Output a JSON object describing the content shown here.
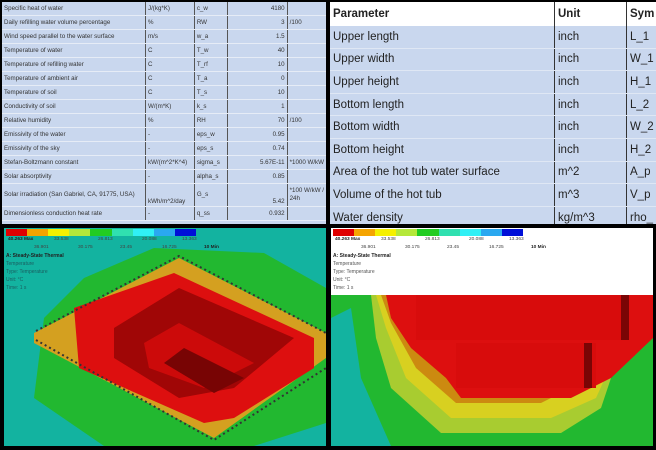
{
  "left_table": {
    "rows": [
      {
        "name": "Specific heat of water",
        "unit": "J/(kg*K)",
        "symbol": "c_w",
        "value": "4180",
        "note": ""
      },
      {
        "name": "Daily refilling water volume percentage",
        "unit": "%",
        "symbol": "RW",
        "value": "3",
        "note": "/100"
      },
      {
        "name": "Wind speed parallel to the water surface",
        "unit": "m/s",
        "symbol": "w_a",
        "value": "1.5",
        "note": ""
      },
      {
        "name": "Temperature of water",
        "unit": "C",
        "symbol": "T_w",
        "value": "40",
        "note": ""
      },
      {
        "name": "Temperature of refilling water",
        "unit": "C",
        "symbol": "T_rf",
        "value": "10",
        "note": ""
      },
      {
        "name": "Temperature of ambient air",
        "unit": "C",
        "symbol": "T_a",
        "value": "0",
        "note": ""
      },
      {
        "name": "Temperature of soil",
        "unit": "C",
        "symbol": "T_s",
        "value": "10",
        "note": ""
      },
      {
        "name": "Conductivity of soil",
        "unit": "W/(m*K)",
        "symbol": "k_s",
        "value": "1",
        "note": ""
      },
      {
        "name": "Relative humidity",
        "unit": "%",
        "symbol": "RH",
        "value": "70",
        "note": "/100"
      },
      {
        "name": "Emissivity of the water",
        "unit": "-",
        "symbol": "eps_w",
        "value": "0.95",
        "note": ""
      },
      {
        "name": "Emissivity of the sky",
        "unit": "-",
        "symbol": "eps_s",
        "value": "0.74",
        "note": ""
      },
      {
        "name": "Stefan-Boltzmann constant",
        "unit": "kW/(m^2*K^4)",
        "symbol": "sigma_s",
        "value": "5.67E-11",
        "note": "*1000 W/kW"
      },
      {
        "name": "Solar absorptivity",
        "unit": "-",
        "symbol": "alpha_s",
        "value": "0.85",
        "note": ""
      },
      {
        "name": "Solar irradiation (San Gabriel, CA, 91775, USA)",
        "unit": "kWh/m^2/day",
        "symbol": "G_s",
        "value": "5.42",
        "note": "*100 W/kW / 24h"
      },
      {
        "name": "Dimensionless conduction heat rate",
        "unit": "-",
        "symbol": "q_ss",
        "value": "0.932",
        "note": ""
      }
    ]
  },
  "right_table": {
    "headers": {
      "parameter": "Parameter",
      "unit": "Unit",
      "symbol": "Sym"
    },
    "rows": [
      {
        "name": "Upper length",
        "unit": "inch",
        "symbol": "L_1"
      },
      {
        "name": "Upper width",
        "unit": "inch",
        "symbol": "W_1"
      },
      {
        "name": "Upper height",
        "unit": "inch",
        "symbol": "H_1"
      },
      {
        "name": "Bottom length",
        "unit": "inch",
        "symbol": "L_2"
      },
      {
        "name": "Bottom width",
        "unit": "inch",
        "symbol": "W_2"
      },
      {
        "name": "Bottom height",
        "unit": "inch",
        "symbol": "H_2"
      },
      {
        "name": "Area of the hot tub water surface",
        "unit": "m^2",
        "symbol": "A_p"
      },
      {
        "name": "Volume of the hot tub",
        "unit": "m^3",
        "symbol": "V_p"
      },
      {
        "name": "Water density",
        "unit": "kg/m^3",
        "symbol": "rho_"
      }
    ]
  },
  "simulation": {
    "legend_colors": [
      "#e00000",
      "#f5a400",
      "#f5f000",
      "#b5e83a",
      "#22cc22",
      "#30e0b0",
      "#30f0f5",
      "#2aa8f0",
      "#0010d8"
    ],
    "upper_labels": [
      "40.263 Max",
      "33.538",
      "26.813",
      "20.088",
      "13.363"
    ],
    "lower_labels": [
      "36.901",
      "30.175",
      "23.45",
      "16.725",
      "10 Min"
    ],
    "title": "A: Steady-State Thermal",
    "line1": "Temperature",
    "line2": "Type: Temperature",
    "line3": "Unit: °C",
    "line4": "Time: 1 s"
  }
}
